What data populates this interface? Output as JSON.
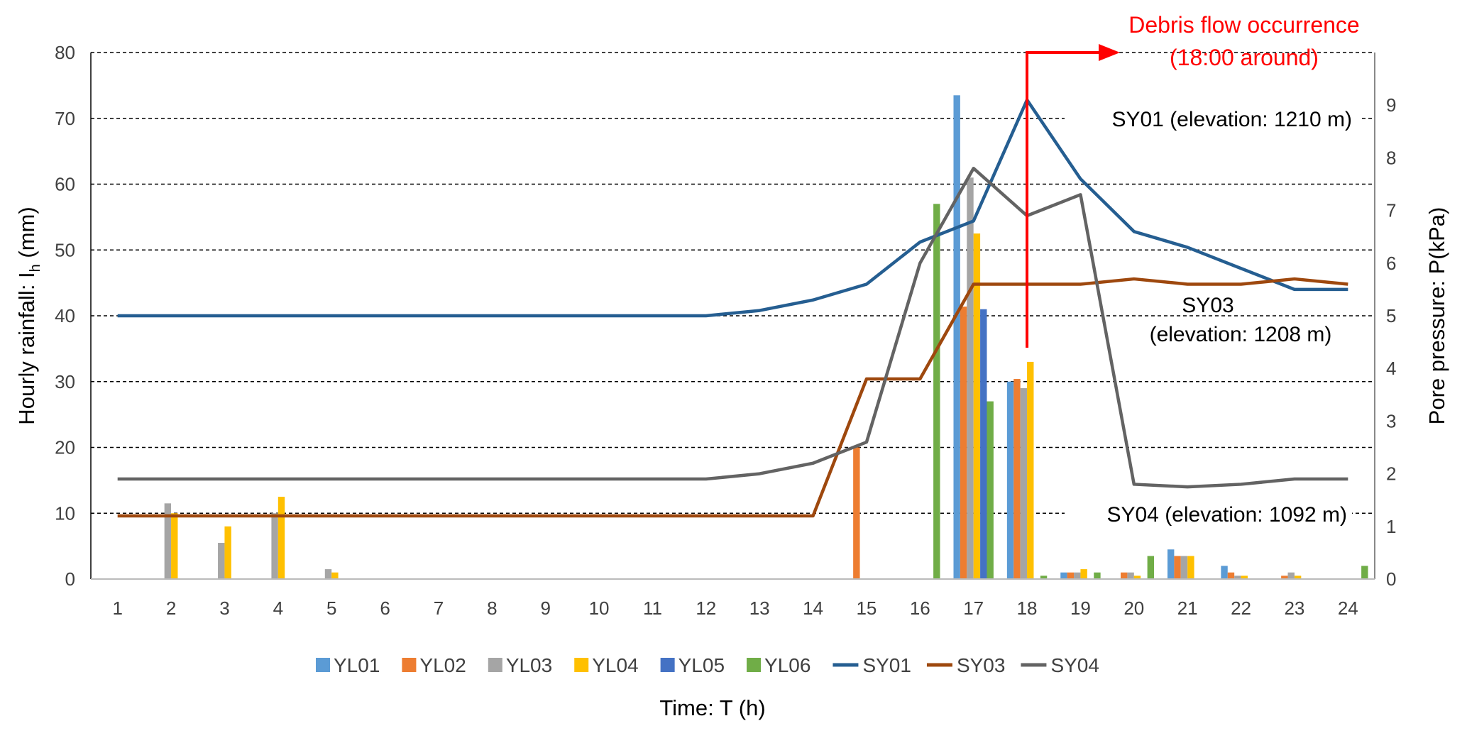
{
  "chart_data": {
    "type": "bar+line",
    "xlabel": "Time: T (h)",
    "ylabel_left": {
      "main": "Hourly rainfall: I",
      "sub": "h",
      "unit": " (mm)"
    },
    "ylabel_right": "Pore pressure: P(kPa)",
    "ylim_left": [
      0,
      80
    ],
    "ylim_right": [
      0,
      10
    ],
    "yticks_left": [
      "0",
      "10",
      "20",
      "30",
      "40",
      "50",
      "60",
      "70",
      "80"
    ],
    "yticks_right": [
      "0",
      "1",
      "2",
      "3",
      "4",
      "5",
      "6",
      "7",
      "8",
      "9"
    ],
    "grid": "horizontal dashed",
    "legend_position": "bottom",
    "categories": [
      "1",
      "2",
      "3",
      "4",
      "5",
      "6",
      "7",
      "8",
      "9",
      "10",
      "11",
      "12",
      "13",
      "14",
      "15",
      "16",
      "17",
      "18",
      "19",
      "20",
      "21",
      "22",
      "23",
      "24"
    ],
    "bar_series": [
      {
        "name": "YL01",
        "color": "#5B9BD5",
        "values": [
          0,
          0,
          0,
          0,
          0,
          0,
          0,
          0,
          0,
          0,
          0,
          0,
          0,
          0,
          0,
          0,
          73.5,
          30,
          1,
          0,
          4.5,
          2,
          0,
          0
        ]
      },
      {
        "name": "YL02",
        "color": "#ED7D31",
        "values": [
          0,
          0,
          0,
          0,
          0,
          0,
          0,
          0,
          0,
          0,
          0,
          0,
          0,
          0,
          20,
          0,
          41.4,
          30.4,
          1,
          1,
          3.5,
          1,
          0.5,
          0
        ]
      },
      {
        "name": "YL03",
        "color": "#A5A5A5",
        "values": [
          0,
          11.5,
          5.5,
          10,
          1.5,
          0,
          0,
          0,
          0,
          0,
          0,
          0,
          0,
          0,
          0,
          0,
          61,
          29,
          1,
          1,
          3.5,
          0.5,
          1,
          0
        ]
      },
      {
        "name": "YL04",
        "color": "#FFC000",
        "values": [
          0,
          10,
          8,
          12.5,
          1,
          0,
          0,
          0,
          0,
          0,
          0,
          0,
          0,
          0,
          0,
          0,
          52.5,
          33,
          1.5,
          0.5,
          3.5,
          0.5,
          0.5,
          0
        ]
      },
      {
        "name": "YL05",
        "color": "#4472C4",
        "values": [
          0,
          0,
          0,
          0,
          0,
          0,
          0,
          0,
          0,
          0,
          0,
          0,
          0,
          0,
          0,
          0,
          41,
          0,
          0,
          0,
          0,
          0,
          0,
          0
        ]
      },
      {
        "name": "YL06",
        "color": "#70AD47",
        "values": [
          0,
          0,
          0,
          0,
          0,
          0,
          0,
          0,
          0,
          0,
          0,
          0,
          0,
          0,
          0,
          57,
          27,
          0.5,
          1,
          3.5,
          0,
          0,
          0,
          2
        ]
      }
    ],
    "line_series": [
      {
        "name": "SY01",
        "color": "#255E91",
        "values": [
          5,
          5,
          5,
          5,
          5,
          5,
          5,
          5,
          5,
          5,
          5,
          5,
          5.1,
          5.3,
          5.6,
          6.4,
          6.8,
          9.1,
          7.6,
          6.6,
          6.3,
          5.9,
          5.5,
          5.5
        ]
      },
      {
        "name": "SY03",
        "color": "#9E480E",
        "values": [
          1.2,
          1.2,
          1.2,
          1.2,
          1.2,
          1.2,
          1.2,
          1.2,
          1.2,
          1.2,
          1.2,
          1.2,
          1.2,
          1.2,
          3.8,
          3.8,
          5.6,
          5.6,
          5.6,
          5.7,
          5.6,
          5.6,
          5.7,
          5.6
        ]
      },
      {
        "name": "SY04",
        "color": "#636363",
        "values": [
          1.9,
          1.9,
          1.9,
          1.9,
          1.9,
          1.9,
          1.9,
          1.9,
          1.9,
          1.9,
          1.9,
          1.9,
          2.0,
          2.2,
          2.6,
          6.0,
          7.8,
          6.9,
          7.3,
          1.8,
          1.75,
          1.8,
          1.9,
          1.9
        ]
      }
    ],
    "annotations": {
      "event_line1": "Debris flow occurrence",
      "event_line2": "(18:00 around)",
      "event_hour": 18,
      "event_color": "#FF0000",
      "sy01_label": "SY01 (elevation: 1210 m)",
      "sy03_label_line1": "SY03",
      "sy03_label_line2": "(elevation: 1208 m)",
      "sy04_label": "SY04 (elevation: 1092 m)"
    }
  }
}
